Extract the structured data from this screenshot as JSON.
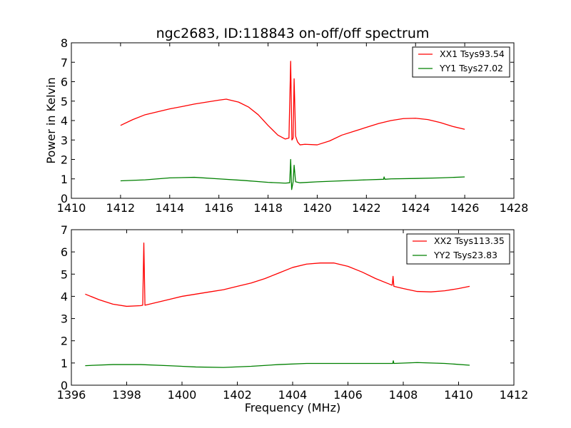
{
  "colors": {
    "xx": "#ff0000",
    "yy": "#008000",
    "axes": "#000000",
    "background": "#ffffff"
  },
  "chart_data": [
    {
      "type": "line",
      "title": "ngc2683, ID:118843 on-off/off spectrum",
      "xlabel": "",
      "ylabel": "Power in Kelvin",
      "xlim": [
        1410,
        1428
      ],
      "ylim": [
        0,
        8
      ],
      "xticks": [
        "1410",
        "1412",
        "1414",
        "1416",
        "1418",
        "1420",
        "1422",
        "1424",
        "1426",
        "1428"
      ],
      "yticks": [
        "0",
        "1",
        "2",
        "3",
        "4",
        "5",
        "6",
        "7",
        "8"
      ],
      "legend": "top-right",
      "grid": false,
      "series": [
        {
          "name": "XX1 Tsys93.54",
          "color": "#ff0000",
          "x": [
            1412.0,
            1412.5,
            1413.0,
            1413.5,
            1414.0,
            1414.5,
            1415.0,
            1415.5,
            1416.0,
            1416.3,
            1416.8,
            1417.2,
            1417.6,
            1418.0,
            1418.4,
            1418.7,
            1418.85,
            1418.92,
            1418.97,
            1419.02,
            1419.06,
            1419.12,
            1419.2,
            1419.3,
            1419.5,
            1420.0,
            1420.5,
            1421.0,
            1421.5,
            1422.0,
            1422.5,
            1423.0,
            1423.5,
            1424.0,
            1424.5,
            1425.0,
            1425.5,
            1426.0
          ],
          "y": [
            3.75,
            4.05,
            4.3,
            4.45,
            4.6,
            4.72,
            4.85,
            4.95,
            5.05,
            5.1,
            4.95,
            4.7,
            4.3,
            3.75,
            3.25,
            3.05,
            3.1,
            7.05,
            3.0,
            3.1,
            6.15,
            3.2,
            2.9,
            2.75,
            2.78,
            2.75,
            2.95,
            3.25,
            3.45,
            3.65,
            3.85,
            4.0,
            4.1,
            4.12,
            4.05,
            3.9,
            3.7,
            3.55
          ]
        },
        {
          "name": "YY1 Tsys27.02",
          "color": "#008000",
          "x": [
            1412.0,
            1413.0,
            1414.0,
            1415.0,
            1416.0,
            1417.0,
            1418.0,
            1418.7,
            1418.88,
            1418.92,
            1418.96,
            1419.02,
            1419.06,
            1419.12,
            1419.3,
            1420.0,
            1421.0,
            1422.0,
            1422.7,
            1422.72,
            1422.75,
            1423.0,
            1424.0,
            1425.0,
            1426.0
          ],
          "y": [
            0.9,
            0.95,
            1.05,
            1.08,
            1.0,
            0.92,
            0.82,
            0.78,
            0.8,
            2.0,
            0.45,
            0.85,
            1.7,
            0.85,
            0.8,
            0.85,
            0.9,
            0.95,
            0.98,
            1.1,
            0.98,
            1.0,
            1.02,
            1.05,
            1.1
          ]
        }
      ]
    },
    {
      "type": "line",
      "title": "",
      "xlabel": "Frequency (MHz)",
      "ylabel": "",
      "xlim": [
        1396,
        1412
      ],
      "ylim": [
        0,
        7
      ],
      "xticks": [
        "1396",
        "1398",
        "1400",
        "1402",
        "1404",
        "1406",
        "1408",
        "1410",
        "1412"
      ],
      "yticks": [
        "0",
        "1",
        "2",
        "3",
        "4",
        "5",
        "6",
        "7"
      ],
      "legend": "top-right",
      "grid": false,
      "series": [
        {
          "name": "XX2 Tsys113.35",
          "color": "#ff0000",
          "x": [
            1396.5,
            1397.0,
            1397.5,
            1398.0,
            1398.5,
            1398.58,
            1398.62,
            1398.66,
            1399.0,
            1399.5,
            1400.0,
            1400.5,
            1401.0,
            1401.5,
            1402.0,
            1402.5,
            1403.0,
            1403.5,
            1404.0,
            1404.5,
            1405.0,
            1405.5,
            1406.0,
            1406.5,
            1407.0,
            1407.5,
            1407.6,
            1407.63,
            1407.66,
            1408.0,
            1408.5,
            1409.0,
            1409.5,
            1410.0,
            1410.4
          ],
          "y": [
            4.1,
            3.85,
            3.65,
            3.55,
            3.58,
            3.6,
            6.4,
            3.6,
            3.7,
            3.85,
            4.0,
            4.1,
            4.2,
            4.3,
            4.45,
            4.6,
            4.8,
            5.05,
            5.3,
            5.45,
            5.5,
            5.5,
            5.35,
            5.1,
            4.8,
            4.55,
            4.5,
            4.9,
            4.45,
            4.35,
            4.22,
            4.2,
            4.25,
            4.35,
            4.45
          ]
        },
        {
          "name": "YY2 Tsys23.83",
          "color": "#008000",
          "x": [
            1396.5,
            1397.5,
            1398.5,
            1399.5,
            1400.5,
            1401.5,
            1402.5,
            1403.5,
            1404.5,
            1405.5,
            1406.5,
            1407.5,
            1407.62,
            1407.64,
            1407.66,
            1408.5,
            1409.5,
            1410.4
          ],
          "y": [
            0.88,
            0.93,
            0.93,
            0.88,
            0.82,
            0.8,
            0.85,
            0.93,
            0.98,
            0.98,
            0.98,
            0.98,
            0.98,
            1.1,
            0.98,
            1.02,
            0.98,
            0.9
          ]
        }
      ]
    }
  ]
}
